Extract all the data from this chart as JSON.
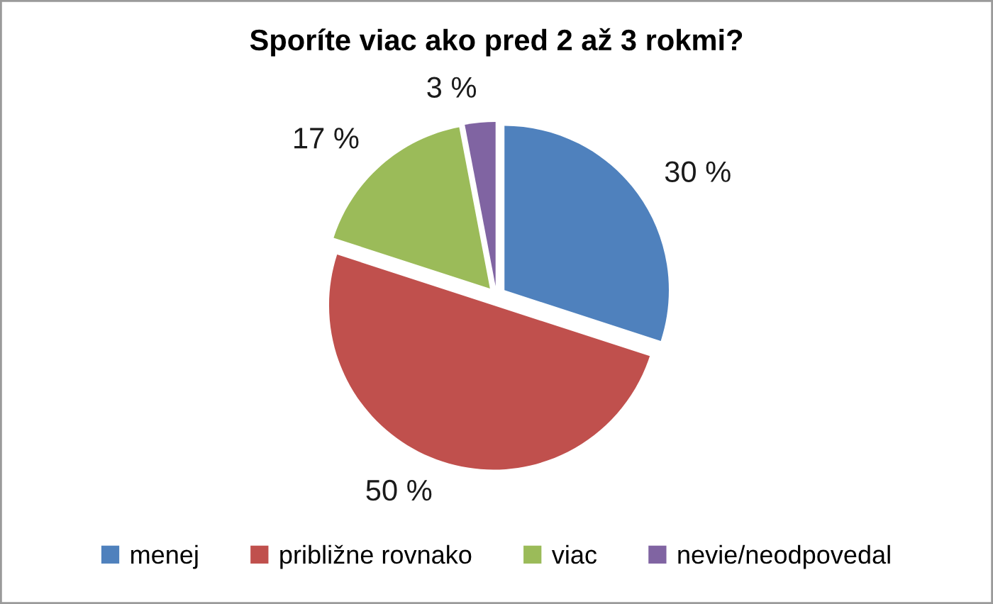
{
  "chart_data": {
    "type": "pie",
    "title": "Sporíte viac ako pred 2 až 3 rokmi?",
    "categories": [
      "menej",
      "približne rovnako",
      "viac",
      "nevie/neodpovedal"
    ],
    "values": [
      30,
      50,
      17,
      3
    ],
    "value_labels": [
      "30 %",
      "50 %",
      "17 %",
      "3 %"
    ],
    "colors": [
      "#4f81bd",
      "#c0504d",
      "#9bbb59",
      "#8064a2"
    ],
    "legend": "bottom"
  }
}
